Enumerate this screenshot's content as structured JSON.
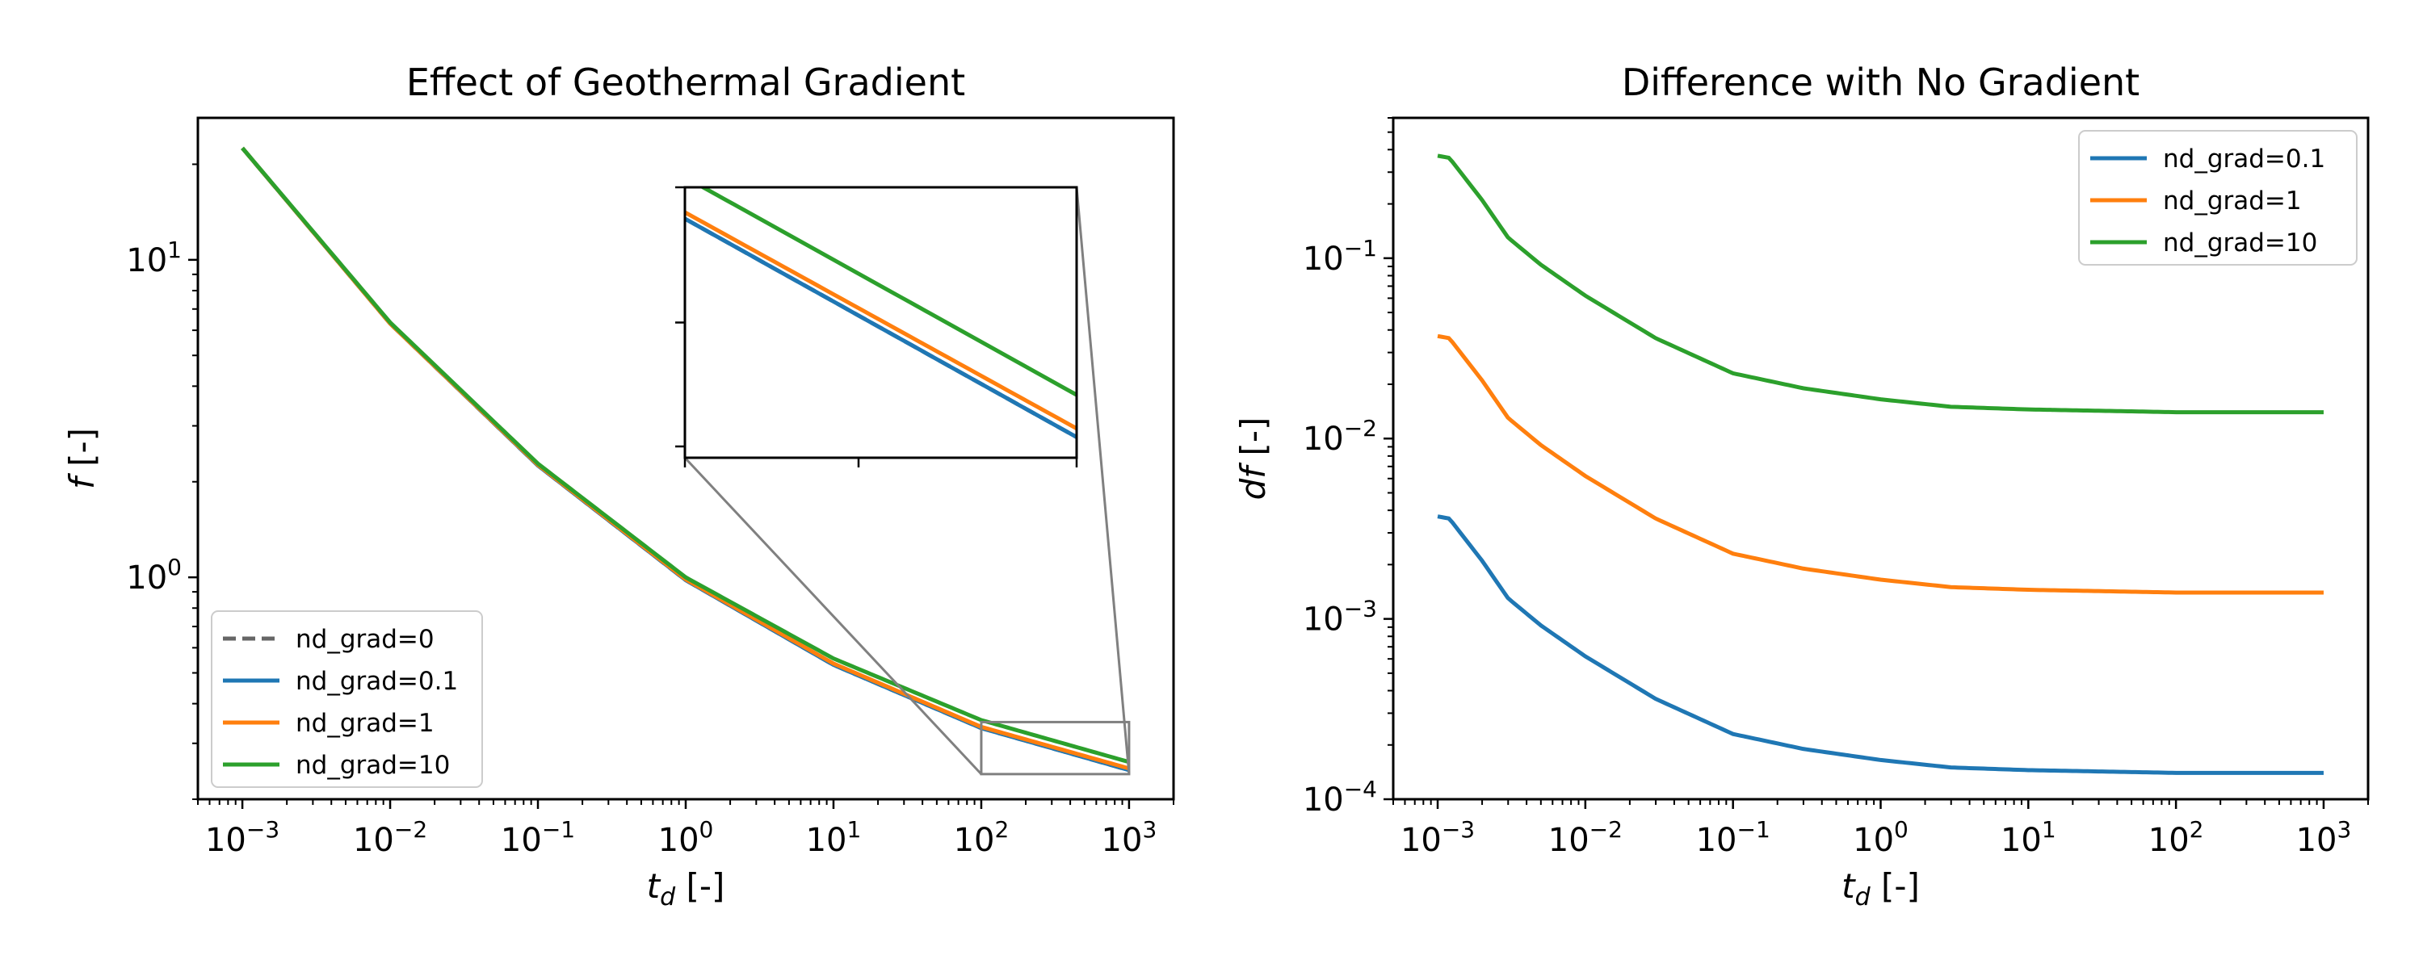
{
  "chart_data": [
    {
      "type": "line",
      "title": "Effect of Geothermal Gradient",
      "xlabel": "t_d [-]",
      "ylabel": "f [-]",
      "xscale": "log",
      "yscale": "log",
      "xlim": [
        0.0005,
        2000
      ],
      "ylim": [
        0.2,
        28
      ],
      "xticks": [
        {
          "base": "10",
          "exp": "−3"
        },
        {
          "base": "10",
          "exp": "−2"
        },
        {
          "base": "10",
          "exp": "−1"
        },
        {
          "base": "10",
          "exp": "0"
        },
        {
          "base": "10",
          "exp": "1"
        },
        {
          "base": "10",
          "exp": "2"
        },
        {
          "base": "10",
          "exp": "3"
        }
      ],
      "yticks": [
        {
          "base": "10",
          "exp": "0"
        },
        {
          "base": "10",
          "exp": "1"
        }
      ],
      "legend": "lower-left",
      "grid": false,
      "x": [
        0.001,
        0.01,
        0.1,
        1,
        10,
        100,
        1000
      ],
      "series": [
        {
          "name": "nd_grad=0",
          "color": "#666666",
          "style": "dashed",
          "values": [
            22.5,
            6.3,
            2.25,
            0.98,
            0.53,
            0.335,
            0.247
          ]
        },
        {
          "name": "nd_grad=0.1",
          "color": "#1f77b4",
          "style": "solid",
          "values": [
            22.5,
            6.3,
            2.25,
            0.98,
            0.53,
            0.335,
            0.247
          ]
        },
        {
          "name": "nd_grad=1",
          "color": "#ff7f0e",
          "style": "solid",
          "values": [
            22.5,
            6.3,
            2.26,
            0.985,
            0.535,
            0.338,
            0.25
          ]
        },
        {
          "name": "nd_grad=10",
          "color": "#2ca02c",
          "style": "solid",
          "values": [
            22.5,
            6.35,
            2.28,
            1.0,
            0.555,
            0.355,
            0.262
          ]
        }
      ],
      "inset": {
        "xlim": [
          100,
          1000
        ],
        "ylim": [
          0.24,
          0.35
        ],
        "indicator_color": "#808080"
      }
    },
    {
      "type": "line",
      "title": "Difference with No Gradient",
      "xlabel": "t_d [-]",
      "ylabel": "df [-]",
      "xscale": "log",
      "yscale": "log",
      "xlim": [
        0.0005,
        2000
      ],
      "ylim": [
        0.0001,
        0.6
      ],
      "xticks": [
        {
          "base": "10",
          "exp": "−3"
        },
        {
          "base": "10",
          "exp": "−2"
        },
        {
          "base": "10",
          "exp": "−1"
        },
        {
          "base": "10",
          "exp": "0"
        },
        {
          "base": "10",
          "exp": "1"
        },
        {
          "base": "10",
          "exp": "2"
        },
        {
          "base": "10",
          "exp": "3"
        }
      ],
      "yticks": [
        {
          "base": "10",
          "exp": "−4"
        },
        {
          "base": "10",
          "exp": "−3"
        },
        {
          "base": "10",
          "exp": "−2"
        },
        {
          "base": "10",
          "exp": "−1"
        }
      ],
      "legend": "upper-right",
      "grid": false,
      "x": [
        0.001,
        0.0012,
        0.002,
        0.003,
        0.005,
        0.01,
        0.03,
        0.1,
        0.3,
        1,
        3,
        10,
        100,
        1000
      ],
      "series": [
        {
          "name": "nd_grad=0.1",
          "color": "#1f77b4",
          "style": "solid",
          "values": [
            0.0037,
            0.0036,
            0.0021,
            0.0013,
            0.00092,
            0.00062,
            0.00036,
            0.00023,
            0.00019,
            0.000165,
            0.00015,
            0.000145,
            0.00014,
            0.00014
          ]
        },
        {
          "name": "nd_grad=1",
          "color": "#ff7f0e",
          "style": "solid",
          "values": [
            0.037,
            0.036,
            0.021,
            0.013,
            0.0092,
            0.0062,
            0.0036,
            0.0023,
            0.0019,
            0.00165,
            0.0015,
            0.00145,
            0.0014,
            0.0014
          ]
        },
        {
          "name": "nd_grad=10",
          "color": "#2ca02c",
          "style": "solid",
          "values": [
            0.37,
            0.36,
            0.21,
            0.13,
            0.092,
            0.062,
            0.036,
            0.023,
            0.019,
            0.0165,
            0.015,
            0.0145,
            0.014,
            0.014
          ]
        }
      ]
    }
  ]
}
